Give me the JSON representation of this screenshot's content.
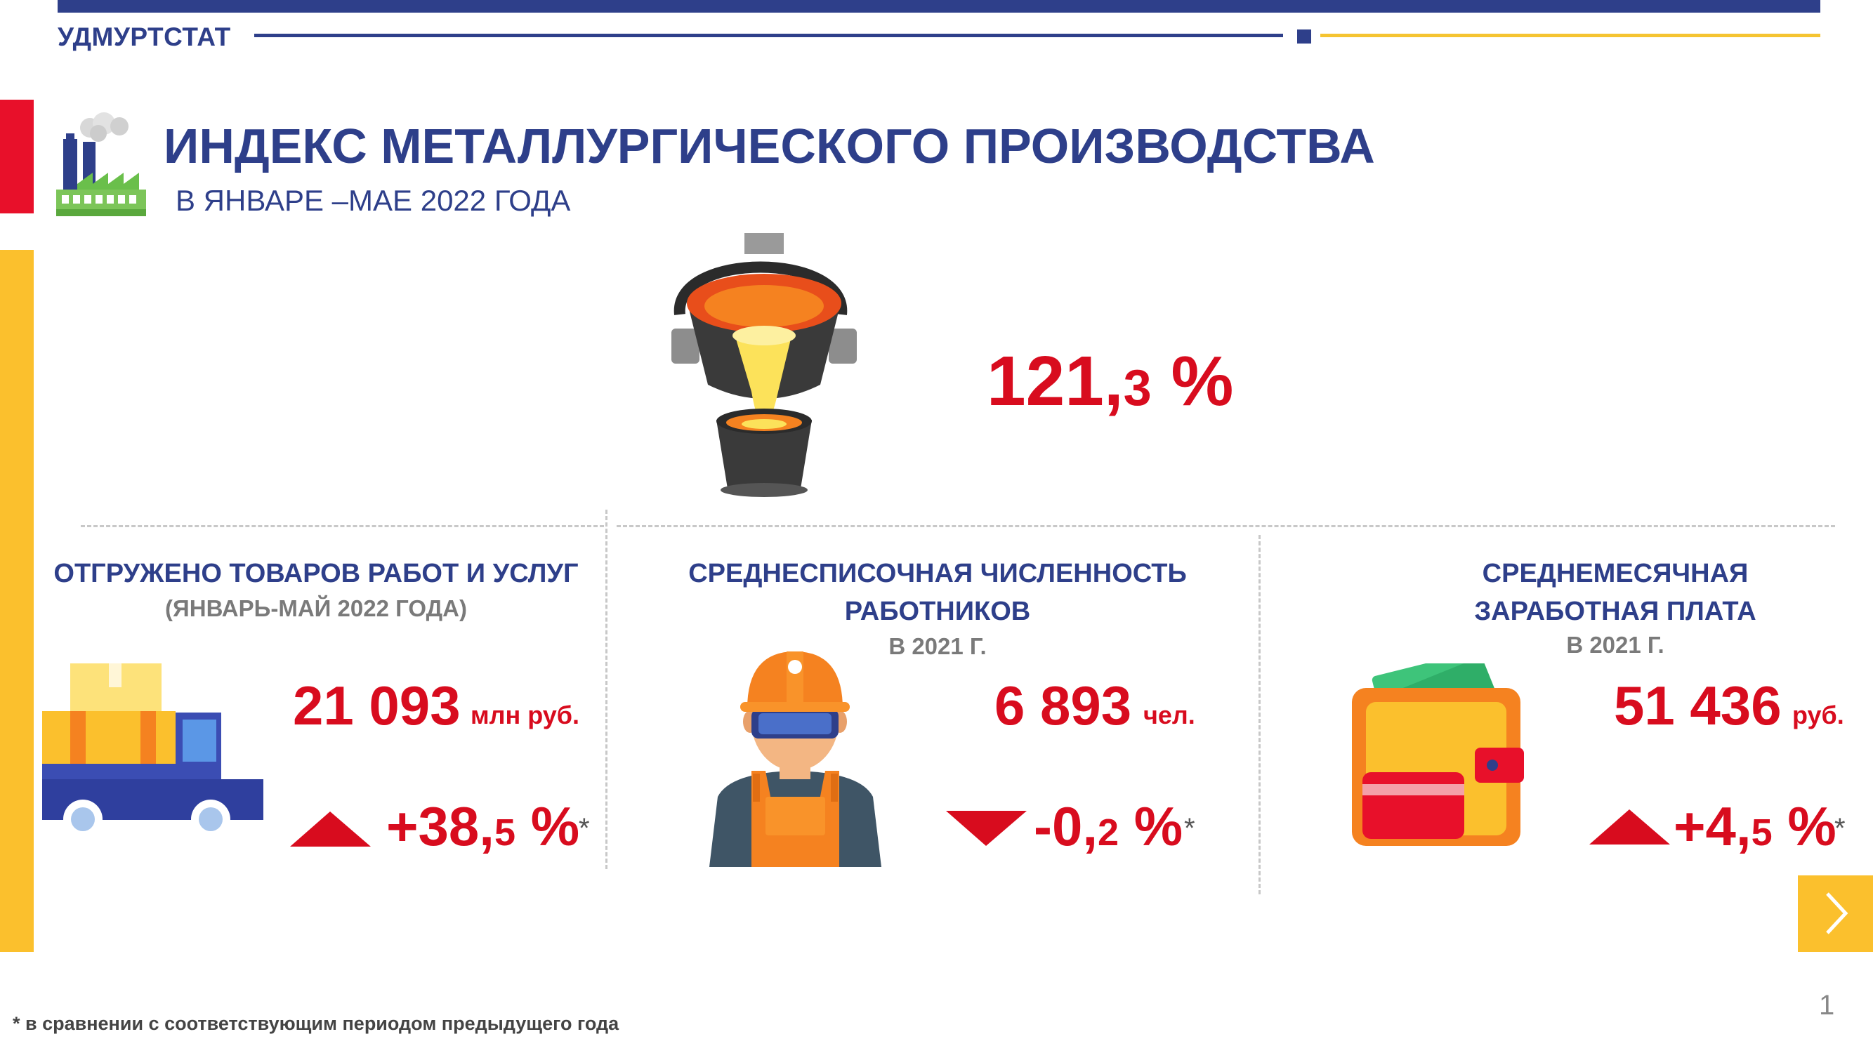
{
  "header": {
    "brand": "УДМУРТСТАТ",
    "title": "ИНДЕКС МЕТАЛЛУРГИЧЕСКОГО ПРОИЗВОДСТВА",
    "subtitle": "В ЯНВАРЕ –МАЕ 2022 ГОДА"
  },
  "main_index": {
    "int": "121,",
    "dec": "3",
    "suffix": " %"
  },
  "columns": [
    {
      "heading_line1": "ОТГРУЖЕНО ТОВАРОВ РАБОТ И УСЛУГ",
      "heading_line2": "",
      "sub": "(ЯНВАРЬ-МАЙ 2022 ГОДА)",
      "value": "21 093",
      "unit": "млн руб.",
      "change_int": "+38,",
      "change_dec": "5",
      "change_suffix": " %",
      "star": "*",
      "direction": "up",
      "icon": "truck-icon"
    },
    {
      "heading_line1": "СРЕДНЕСПИСОЧНАЯ ЧИСЛЕННОСТЬ",
      "heading_line2": "РАБОТНИКОВ",
      "sub": "В 2021 Г.",
      "value": "6 893",
      "unit": "чел.",
      "change_int": "-0,",
      "change_dec": "2",
      "change_suffix": " %",
      "star": "*",
      "direction": "down",
      "icon": "worker-icon"
    },
    {
      "heading_line1": "СРЕДНЕМЕСЯЧНАЯ",
      "heading_line2": "ЗАРАБОТНАЯ ПЛАТА",
      "sub": "В 2021 Г.",
      "value": "51 436",
      "unit": "руб.",
      "change_int": "+4,",
      "change_dec": "5",
      "change_suffix": " %",
      "star": "*",
      "direction": "up",
      "icon": "wallet-icon"
    }
  ],
  "footnote": "* в сравнении с соответствующим периодом предыдущего года",
  "page_number": "1",
  "colors": {
    "navy": "#2e3f8a",
    "red": "#d80c1e",
    "yellow": "#fbc02d",
    "side_red": "#e8102a"
  }
}
